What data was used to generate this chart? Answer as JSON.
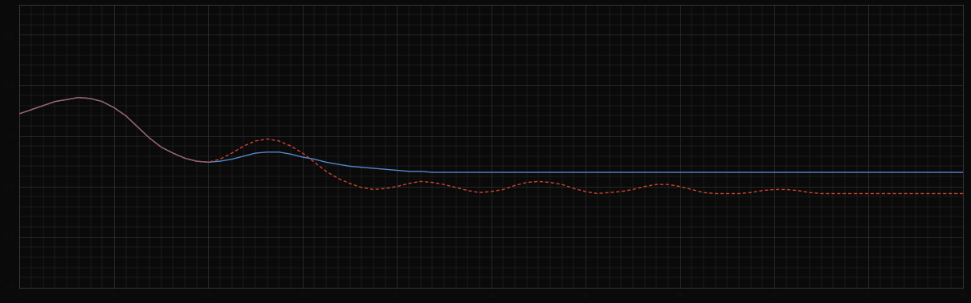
{
  "background_color": "#0a0a0a",
  "plot_bg_color": "#0a0a0a",
  "grid_color": "#333333",
  "spine_color": "#444444",
  "tick_color": "#111111",
  "blue_line_color": "#5588cc",
  "red_line_color": "#cc4433",
  "figsize": [
    12.09,
    3.78
  ],
  "dpi": 100,
  "x_values": [
    0,
    1,
    2,
    3,
    4,
    5,
    6,
    7,
    8,
    9,
    10,
    11,
    12,
    13,
    14,
    15,
    16,
    17,
    18,
    19,
    20,
    21,
    22,
    23,
    24,
    25,
    26,
    27,
    28,
    29,
    30,
    31,
    32,
    33,
    34,
    35,
    36,
    37,
    38,
    39,
    40,
    41,
    42,
    43,
    44,
    45,
    46,
    47,
    48,
    49,
    50,
    51,
    52,
    53,
    54,
    55,
    56,
    57,
    58,
    59,
    60,
    61,
    62,
    63,
    64,
    65,
    66,
    67,
    68,
    69,
    70,
    71,
    72,
    73,
    74,
    75,
    76,
    77,
    78,
    79,
    80
  ],
  "blue_y": [
    1.72,
    1.76,
    1.8,
    1.84,
    1.86,
    1.88,
    1.87,
    1.84,
    1.78,
    1.7,
    1.59,
    1.48,
    1.39,
    1.33,
    1.28,
    1.25,
    1.24,
    1.25,
    1.27,
    1.3,
    1.33,
    1.34,
    1.34,
    1.32,
    1.29,
    1.27,
    1.24,
    1.22,
    1.2,
    1.19,
    1.18,
    1.17,
    1.16,
    1.15,
    1.15,
    1.14,
    1.14,
    1.14,
    1.14,
    1.14,
    1.14,
    1.14,
    1.14,
    1.14,
    1.14,
    1.14,
    1.14,
    1.14,
    1.14,
    1.14,
    1.14,
    1.14,
    1.14,
    1.14,
    1.14,
    1.14,
    1.14,
    1.14,
    1.14,
    1.14,
    1.14,
    1.14,
    1.14,
    1.14,
    1.14,
    1.14,
    1.14,
    1.14,
    1.14,
    1.14,
    1.14,
    1.14,
    1.14,
    1.14,
    1.14,
    1.14,
    1.14,
    1.14,
    1.14,
    1.14,
    1.14
  ],
  "red_y": [
    1.72,
    1.76,
    1.8,
    1.84,
    1.86,
    1.88,
    1.87,
    1.84,
    1.78,
    1.7,
    1.59,
    1.48,
    1.39,
    1.33,
    1.28,
    1.25,
    1.24,
    1.27,
    1.33,
    1.4,
    1.45,
    1.47,
    1.45,
    1.4,
    1.33,
    1.24,
    1.15,
    1.08,
    1.03,
    0.99,
    0.97,
    0.98,
    1.0,
    1.03,
    1.05,
    1.04,
    1.02,
    0.99,
    0.96,
    0.94,
    0.95,
    0.97,
    1.01,
    1.04,
    1.05,
    1.04,
    1.02,
    0.98,
    0.95,
    0.93,
    0.94,
    0.95,
    0.97,
    1.0,
    1.02,
    1.02,
    1.0,
    0.97,
    0.94,
    0.93,
    0.93,
    0.93,
    0.94,
    0.96,
    0.97,
    0.97,
    0.96,
    0.94,
    0.93,
    0.93,
    0.93,
    0.93,
    0.93,
    0.93,
    0.93,
    0.93,
    0.93,
    0.93,
    0.93,
    0.93,
    0.93
  ],
  "xlim": [
    0,
    80
  ],
  "ylim": [
    0.0,
    2.8
  ],
  "x_major_interval": 8,
  "x_minor_interval": 1,
  "y_major_interval": 0.5,
  "y_minor_interval": 0.1
}
